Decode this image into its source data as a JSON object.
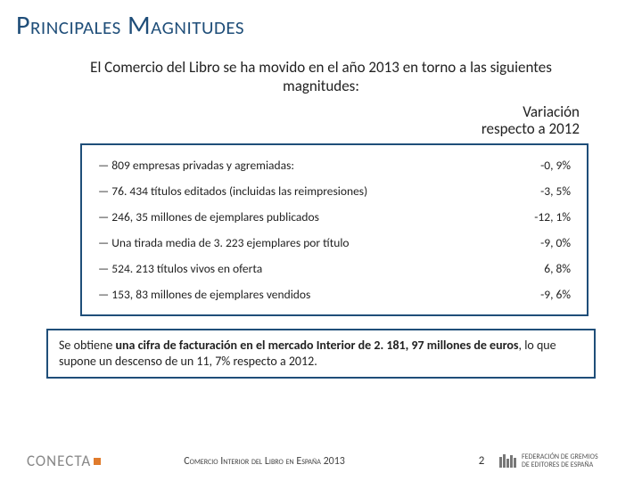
{
  "title": "Principales Magnitudes",
  "subtitle": "El Comercio del Libro se ha movido en el año 2013 en torno a las siguientes magnitudes:",
  "variation_label_l1": "Variación",
  "variation_label_l2": "respecto a 2012",
  "table": {
    "border_color": "#1f4e79",
    "rows": [
      {
        "label": "— 809 empresas privadas y agremiadas:",
        "value": "-0, 9%"
      },
      {
        "label": "— 76. 434 títulos editados (incluidas las reimpresiones)",
        "value": "-3, 5%"
      },
      {
        "label": "— 246, 35 millones de ejemplares publicados",
        "value": "-12, 1%"
      },
      {
        "label": "— Una tirada media de 3. 223 ejemplares por título",
        "value": "-9, 0%"
      },
      {
        "label": "— 524. 213 títulos vivos en oferta",
        "value": "6, 8%"
      },
      {
        "label": "— 153, 83 millones de ejemplares vendidos",
        "value": "-9, 6%"
      }
    ]
  },
  "summary_pre": "Se obtiene ",
  "summary_bold1": "una cifra de facturación en el mercado Interior de 2. 181, 97 millones de euros",
  "summary_mid": ", lo que supone un descenso de un 11, 7% respecto a 2012.",
  "footer": {
    "left_logo_text": "CONECTA",
    "center": "Comercio Interior del Libro en España 2013",
    "page": "2",
    "right_l1": "FEDERACIÓN DE GREMIOS",
    "right_l2": "DE EDITORES DE ESPAÑA"
  },
  "colors": {
    "title": "#1f4e79",
    "accent": "#e07b2c"
  }
}
